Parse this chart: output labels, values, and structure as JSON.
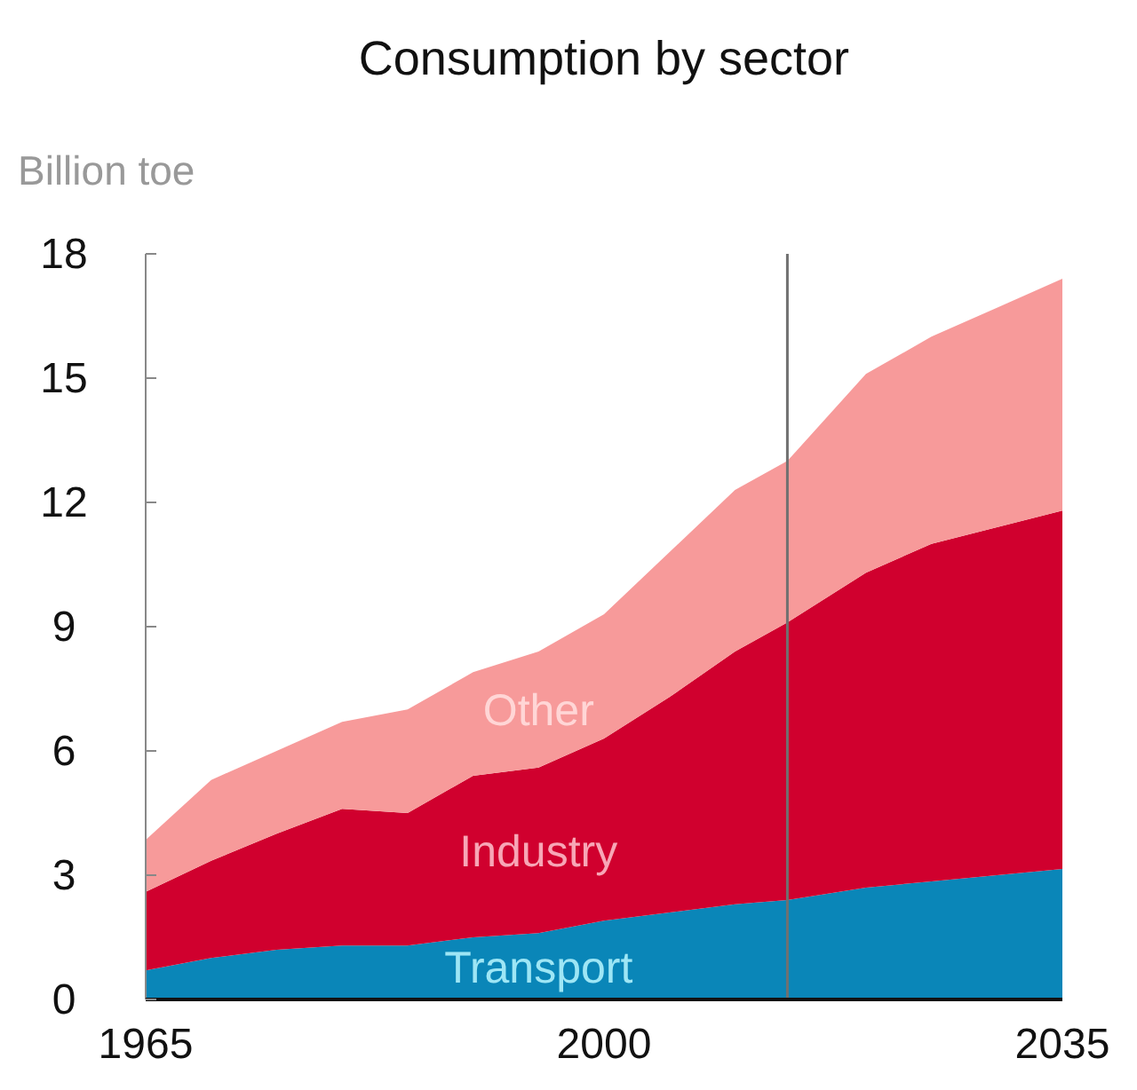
{
  "chart_data": {
    "type": "area",
    "stacked": true,
    "title": "Consumption by sector",
    "ylabel": "Billion toe",
    "x": [
      1965,
      1970,
      1975,
      1980,
      1985,
      1990,
      1995,
      2000,
      2005,
      2010,
      2014,
      2020,
      2025,
      2030,
      2035
    ],
    "series": [
      {
        "name": "Transport",
        "color": "#0a86b8",
        "values": [
          0.7,
          1.0,
          1.2,
          1.3,
          1.3,
          1.5,
          1.6,
          1.9,
          2.1,
          2.3,
          2.4,
          2.7,
          2.85,
          3.0,
          3.15
        ]
      },
      {
        "name": "Industry",
        "color": "#d0002e",
        "values": [
          1.9,
          2.35,
          2.8,
          3.3,
          3.2,
          3.9,
          4.0,
          4.4,
          5.2,
          6.1,
          6.7,
          7.6,
          8.15,
          8.4,
          8.65
        ]
      },
      {
        "name": "Other",
        "color": "#f79a9a",
        "values": [
          1.25,
          1.95,
          2.0,
          2.1,
          2.5,
          2.5,
          2.8,
          3.0,
          3.5,
          3.9,
          3.9,
          4.8,
          5.0,
          5.3,
          5.6
        ]
      }
    ],
    "xlim": [
      1965,
      2035
    ],
    "xticks": [
      1965,
      2000,
      2035
    ],
    "ylim": [
      0,
      18
    ],
    "yticks": [
      0,
      3,
      6,
      9,
      12,
      15,
      18
    ],
    "ref_lines": [
      {
        "axis": "x",
        "value": 2014,
        "color": "#707070"
      }
    ],
    "grid": false
  }
}
